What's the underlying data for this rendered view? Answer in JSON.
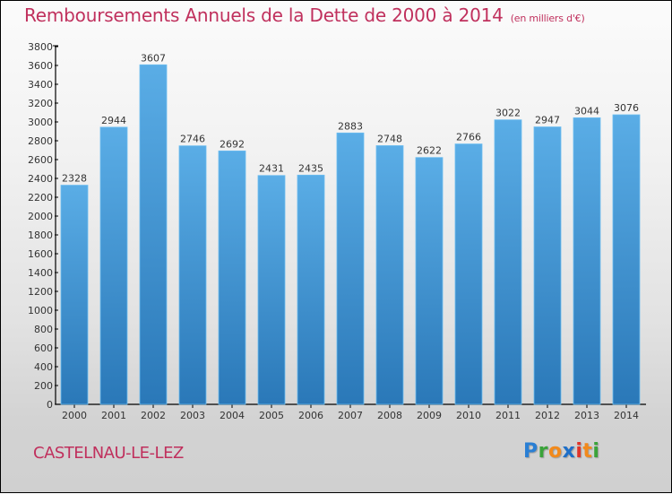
{
  "header": {
    "title": "Remboursements Annuels de la Dette de 2000 à 2014",
    "unit": "(en milliers d'€)"
  },
  "footer": {
    "city": "CASTELNAU-LE-LEZ",
    "logo_letters": [
      {
        "char": "P",
        "color": "#2a7fd4"
      },
      {
        "char": "r",
        "color": "#3aa33a"
      },
      {
        "char": "o",
        "color": "#f28a1c"
      },
      {
        "char": "x",
        "color": "#1e6fc8"
      },
      {
        "char": "i",
        "color": "#e0342a"
      },
      {
        "char": "t",
        "color": "#f28a1c"
      },
      {
        "char": "i",
        "color": "#3aa33a"
      }
    ]
  },
  "colors": {
    "title": "#c0305d",
    "bar_top": "#5aade6",
    "bar_bottom": "#2a78b8",
    "axis": "#000000"
  },
  "chart_data": {
    "type": "bar",
    "title": "Remboursements Annuels de la Dette de 2000 à 2014",
    "subtitle": "(en milliers d'€)",
    "xlabel": "",
    "ylabel": "",
    "categories": [
      "2000",
      "2001",
      "2002",
      "2003",
      "2004",
      "2005",
      "2006",
      "2007",
      "2008",
      "2009",
      "2010",
      "2011",
      "2012",
      "2013",
      "2014"
    ],
    "values": [
      2328,
      2944,
      3607,
      2746,
      2692,
      2431,
      2435,
      2883,
      2748,
      2622,
      2766,
      3022,
      2947,
      3044,
      3076
    ],
    "ylim": [
      0,
      3800
    ],
    "yticks": [
      0,
      200,
      400,
      600,
      800,
      1000,
      1200,
      1400,
      1600,
      1800,
      2000,
      2200,
      2400,
      2600,
      2800,
      3000,
      3200,
      3400,
      3600,
      3800
    ],
    "grid": false,
    "legend": "none",
    "data_labels": true
  }
}
